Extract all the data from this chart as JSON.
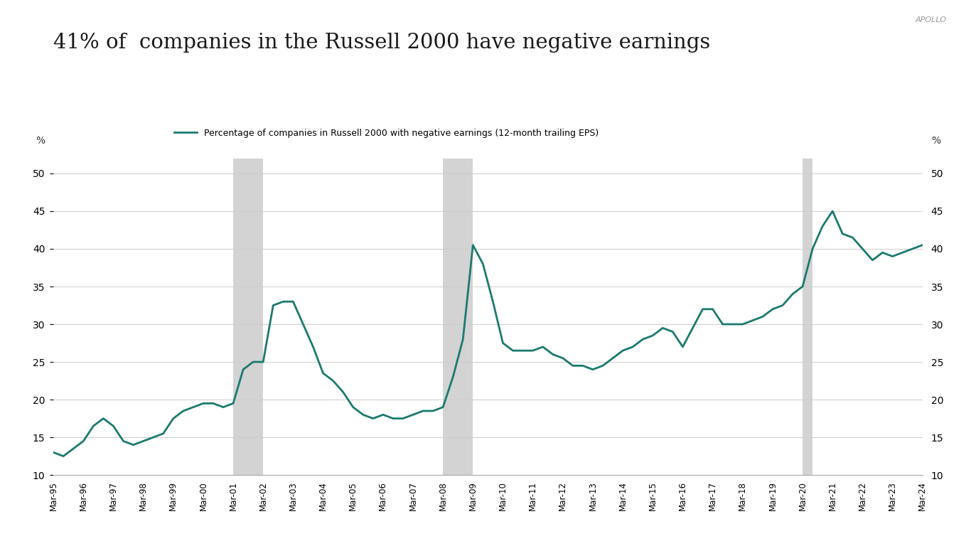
{
  "title": "41% of  companies in the Russell 2000 have negative earnings",
  "watermark": "APOLLO",
  "legend_label": "Percentage of companies in Russell 2000 with negative earnings (12-month trailing EPS)",
  "ylabel_left": "%",
  "ylabel_right": "%",
  "yticks": [
    10,
    15,
    20,
    25,
    30,
    35,
    40,
    45,
    50
  ],
  "ylim": [
    10,
    52
  ],
  "line_color": "#1a7a6e",
  "line_width": 2.0,
  "background_color": "#ffffff",
  "recession_color": "#d3d3d3",
  "x_labels": [
    "Mar-95",
    "Mar-96",
    "Mar-97",
    "Mar-98",
    "Mar-99",
    "Mar-00",
    "Mar-01",
    "Mar-02",
    "Mar-03",
    "Mar-04",
    "Mar-05",
    "Mar-06",
    "Mar-07",
    "Mar-08",
    "Mar-09",
    "Mar-10",
    "Mar-11",
    "Mar-12",
    "Mar-13",
    "Mar-14",
    "Mar-15",
    "Mar-16",
    "Mar-17",
    "Mar-18",
    "Mar-19",
    "Mar-20",
    "Mar-21",
    "Mar-22",
    "Mar-23",
    "Mar-24"
  ],
  "data": [
    [
      "Mar-95",
      13.0
    ],
    [
      "Mar-95.3",
      12.5
    ],
    [
      "Mar-95.6",
      13.5
    ],
    [
      "Mar-96",
      14.5
    ],
    [
      "Mar-96.3",
      16.5
    ],
    [
      "Mar-96.6",
      17.5
    ],
    [
      "Mar-97",
      16.5
    ],
    [
      "Mar-97.3",
      14.5
    ],
    [
      "Mar-97.6",
      14.0
    ],
    [
      "Mar-98",
      14.5
    ],
    [
      "Mar-98.3",
      15.0
    ],
    [
      "Mar-98.6",
      15.5
    ],
    [
      "Mar-99",
      17.5
    ],
    [
      "Mar-99.3",
      18.5
    ],
    [
      "Mar-99.6",
      19.0
    ],
    [
      "Mar-00",
      19.5
    ],
    [
      "Mar-00.3",
      19.5
    ],
    [
      "Mar-00.6",
      19.0
    ],
    [
      "Mar-01",
      19.5
    ],
    [
      "Mar-01.3",
      24.0
    ],
    [
      "Mar-01.6",
      25.0
    ],
    [
      "Mar-02",
      25.0
    ],
    [
      "Mar-02.3",
      32.5
    ],
    [
      "Mar-02.6",
      33.0
    ],
    [
      "Mar-03",
      33.0
    ],
    [
      "Mar-03.3",
      30.0
    ],
    [
      "Mar-03.6",
      27.0
    ],
    [
      "Mar-04",
      23.5
    ],
    [
      "Mar-04.3",
      22.5
    ],
    [
      "Mar-04.6",
      21.0
    ],
    [
      "Mar-05",
      19.0
    ],
    [
      "Mar-05.3",
      18.0
    ],
    [
      "Mar-05.6",
      17.5
    ],
    [
      "Mar-06",
      18.0
    ],
    [
      "Mar-06.3",
      17.5
    ],
    [
      "Mar-06.6",
      17.5
    ],
    [
      "Mar-07",
      18.0
    ],
    [
      "Mar-07.3",
      18.5
    ],
    [
      "Mar-07.6",
      18.5
    ],
    [
      "Mar-08",
      19.0
    ],
    [
      "Mar-08.3",
      23.0
    ],
    [
      "Mar-08.6",
      28.0
    ],
    [
      "Mar-09",
      40.5
    ],
    [
      "Mar-09.3",
      38.0
    ],
    [
      "Mar-09.6",
      33.0
    ],
    [
      "Mar-10",
      27.5
    ],
    [
      "Mar-10.3",
      26.5
    ],
    [
      "Mar-10.6",
      26.5
    ],
    [
      "Mar-11",
      26.5
    ],
    [
      "Mar-11.3",
      27.0
    ],
    [
      "Mar-11.6",
      26.0
    ],
    [
      "Mar-12",
      25.5
    ],
    [
      "Mar-12.3",
      24.5
    ],
    [
      "Mar-12.6",
      24.5
    ],
    [
      "Mar-13",
      24.0
    ],
    [
      "Mar-13.3",
      24.5
    ],
    [
      "Mar-13.6",
      25.5
    ],
    [
      "Mar-14",
      26.5
    ],
    [
      "Mar-14.3",
      27.0
    ],
    [
      "Mar-14.6",
      28.0
    ],
    [
      "Mar-15",
      28.5
    ],
    [
      "Mar-15.3",
      29.5
    ],
    [
      "Mar-15.6",
      29.0
    ],
    [
      "Mar-16",
      27.0
    ],
    [
      "Mar-16.3",
      29.5
    ],
    [
      "Mar-16.6",
      32.0
    ],
    [
      "Mar-17",
      32.0
    ],
    [
      "Mar-17.3",
      30.0
    ],
    [
      "Mar-17.6",
      30.0
    ],
    [
      "Mar-18",
      30.0
    ],
    [
      "Mar-18.3",
      30.5
    ],
    [
      "Mar-18.6",
      31.0
    ],
    [
      "Mar-19",
      32.0
    ],
    [
      "Mar-19.3",
      32.5
    ],
    [
      "Mar-19.6",
      34.0
    ],
    [
      "Mar-20",
      35.0
    ],
    [
      "Mar-20.3",
      40.0
    ],
    [
      "Mar-20.6",
      43.0
    ],
    [
      "Mar-21",
      45.0
    ],
    [
      "Mar-21.3",
      42.0
    ],
    [
      "Mar-21.6",
      41.5
    ],
    [
      "Mar-22",
      40.0
    ],
    [
      "Mar-22.3",
      38.5
    ],
    [
      "Mar-22.6",
      39.5
    ],
    [
      "Mar-23",
      39.0
    ],
    [
      "Mar-23.3",
      39.5
    ],
    [
      "Mar-23.6",
      40.0
    ],
    [
      "Mar-24",
      40.5
    ]
  ],
  "recession_bands": [
    [
      "Mar-01",
      "Mar-02"
    ],
    [
      "Mar-08",
      "Mar-09"
    ],
    [
      "Mar-20",
      "Mar-20.3"
    ]
  ]
}
